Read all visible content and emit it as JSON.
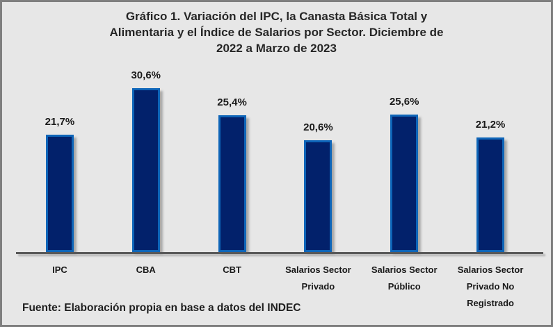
{
  "chart_data": {
    "type": "bar",
    "title": "Gráfico 1. Variación del IPC, la Canasta Básica Total y Alimentaria y el Índice de Salarios por Sector. Diciembre de 2022 a Marzo de 2023",
    "title_lines": [
      "Gráfico 1. Variación del IPC, la Canasta Básica Total y",
      "Alimentaria y el Índice de Salarios por Sector. Diciembre de",
      "2022 a Marzo de 2023"
    ],
    "categories": [
      "IPC",
      "CBA",
      "CBT",
      "Salarios Sector Privado",
      "Salarios Sector Público",
      "Salarios Sector Privado No Registrado"
    ],
    "values": [
      21.7,
      30.6,
      25.4,
      20.6,
      25.6,
      21.2
    ],
    "value_labels": [
      "21,7%",
      "30,6%",
      "25,4%",
      "20,6%",
      "25,6%",
      "21,2%"
    ],
    "xlabel": "",
    "ylabel": "",
    "ylim": [
      0,
      35
    ],
    "grid": false,
    "legend": false,
    "source_note": "Fuente: Elaboración propia en base a datos del INDEC",
    "colors": {
      "background": "#e7e7e7",
      "frame_border": "#7f7f7f",
      "bar_fill": "#02216b",
      "bar_border": "#0e65b8",
      "axis_line": "#595959",
      "text": "#1a1a1a"
    }
  }
}
